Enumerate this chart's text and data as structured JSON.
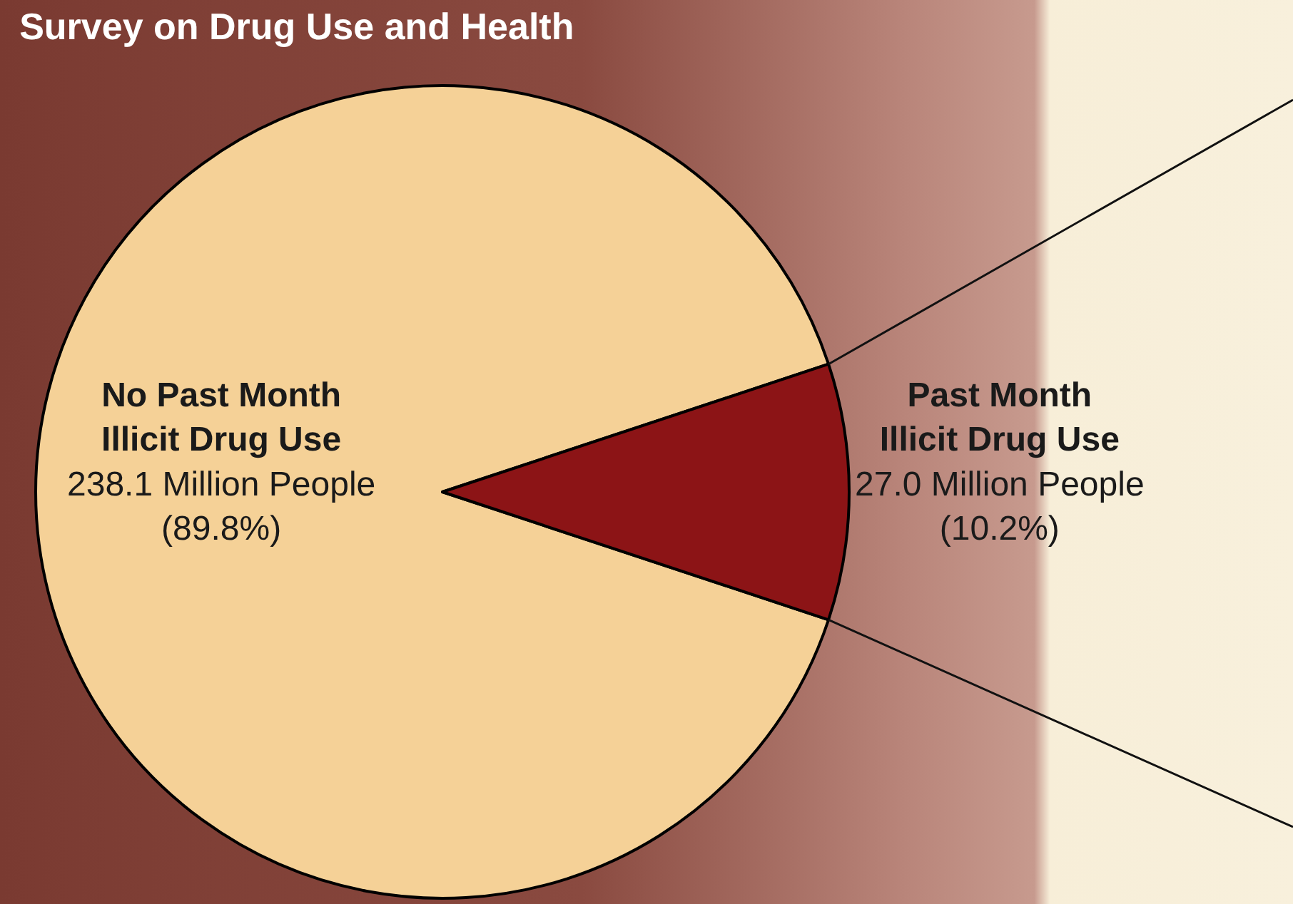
{
  "chart_data": {
    "type": "pie",
    "title": "Survey on Drug Use and Health",
    "categories": [
      "No Past Month\nIllicit Drug Use",
      "Past Month\nIllicit Drug Use"
    ],
    "values": [
      238.1,
      27.0
    ],
    "value_labels": [
      "238.1 Million People\n(89.8%)",
      "27.0 Million People\n(10.2%)"
    ],
    "colors": [
      "#f5d197",
      "#8c1416"
    ],
    "legend": false
  }
}
